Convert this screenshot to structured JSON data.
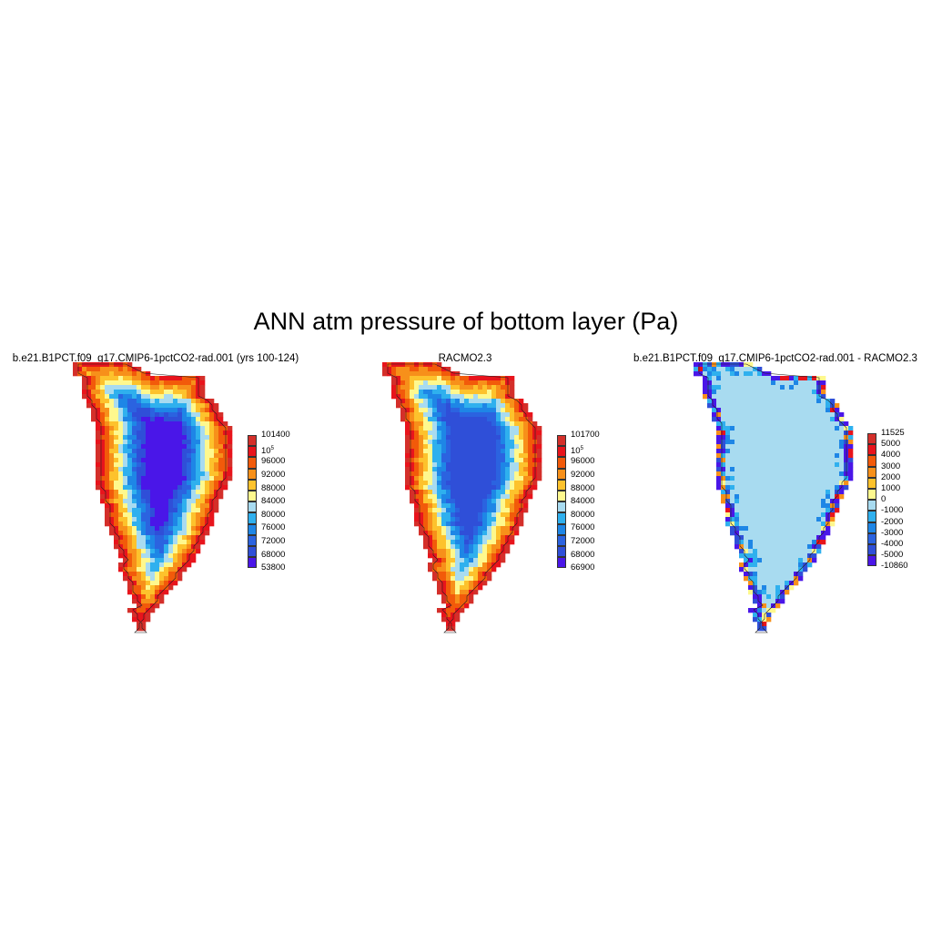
{
  "chart_data": {
    "type": "heatmap",
    "title": "ANN atm pressure of bottom layer (Pa)",
    "panels": [
      {
        "title": "b.e21.B1PCT.f09_g17.CMIP6-1pctCO2-rad.001 (yrs 100-124)",
        "kind": "absolute",
        "colorbar": {
          "colors": [
            "#d42f2a",
            "#e8141c",
            "#f25a0a",
            "#f7901a",
            "#fdc22c",
            "#fef88e",
            "#a8dbf0",
            "#2fb0ee",
            "#1e86e6",
            "#2b63e0",
            "#2f4fd8",
            "#4a16e8"
          ],
          "labels": [
            "101400",
            "10^5",
            "96000",
            "92000",
            "88000",
            "84000",
            "80000",
            "76000",
            "72000",
            "68000",
            "53800"
          ]
        }
      },
      {
        "title": "RACMO2.3",
        "kind": "absolute",
        "colorbar": {
          "colors": [
            "#d42f2a",
            "#e8141c",
            "#f25a0a",
            "#f7901a",
            "#fdc22c",
            "#fef88e",
            "#a8dbf0",
            "#2fb0ee",
            "#1e86e6",
            "#2b63e0",
            "#2f4fd8",
            "#4a16e8"
          ],
          "labels": [
            "101700",
            "10^5",
            "96000",
            "92000",
            "88000",
            "84000",
            "80000",
            "76000",
            "72000",
            "68000",
            "66900"
          ]
        }
      },
      {
        "title": "b.e21.B1PCT.f09_g17.CMIP6-1pctCO2-rad.001 - RACMO2.3",
        "kind": "difference",
        "colorbar": {
          "colors": [
            "#d42f2a",
            "#e8141c",
            "#f25a0a",
            "#f7901a",
            "#fdc22c",
            "#fef88e",
            "#a8dbf0",
            "#2fb0ee",
            "#1e86e6",
            "#2b63e0",
            "#2f4fd8",
            "#4a16e8"
          ],
          "labels": [
            "11525",
            "5000",
            "4000",
            "3000",
            "2000",
            "1000",
            "0",
            "-1000",
            "-2000",
            "-3000",
            "-4000",
            "-5000",
            "-10860"
          ]
        }
      }
    ]
  }
}
